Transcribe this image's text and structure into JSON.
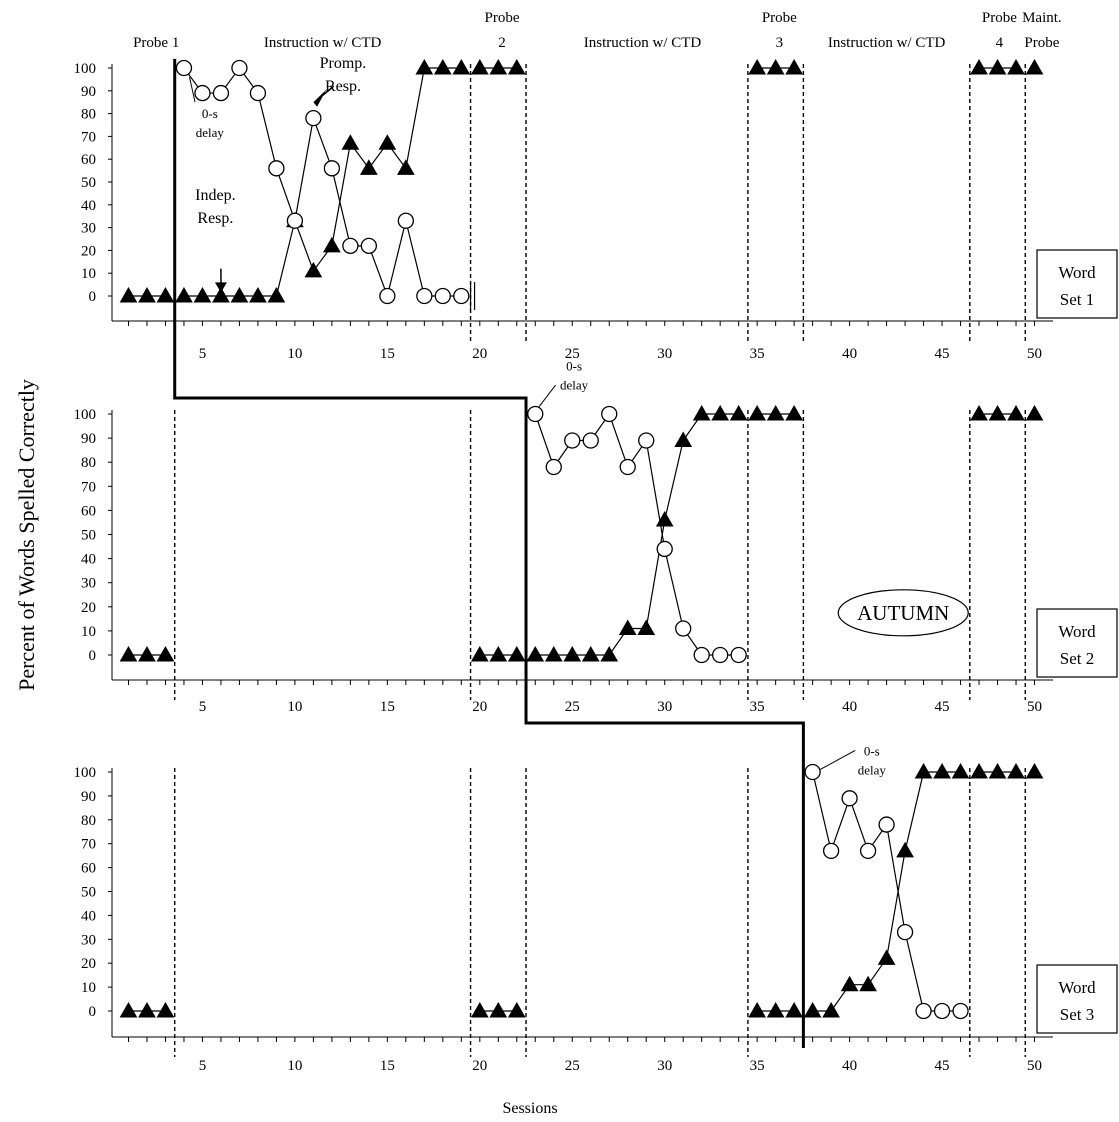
{
  "chart_data": {
    "type": "line",
    "ylabel": "Percent of Words Spelled Correctly",
    "xlabel": "Sessions",
    "xlim": [
      0,
      50
    ],
    "ylim": [
      0,
      100
    ],
    "x_ticks": [
      5,
      10,
      15,
      20,
      25,
      30,
      35,
      40,
      45,
      50
    ],
    "y_ticks": [
      0,
      10,
      20,
      30,
      40,
      50,
      60,
      70,
      80,
      90,
      100
    ],
    "phase_labels": [
      {
        "lines": [
          "Probe 1"
        ],
        "x": 2.5
      },
      {
        "lines": [
          "Instruction w/ CTD"
        ],
        "x": 11.5
      },
      {
        "lines": [
          "Probe",
          "2"
        ],
        "x": 21.2
      },
      {
        "lines": [
          "Instruction w/ CTD"
        ],
        "x": 28.8
      },
      {
        "lines": [
          "Probe",
          "3"
        ],
        "x": 36.2
      },
      {
        "lines": [
          "Instruction w/ CTD"
        ],
        "x": 42
      },
      {
        "lines": [
          "Probe",
          "4"
        ],
        "x": 48.1
      },
      {
        "lines": [
          "Maint.",
          "Probe"
        ],
        "x": 50.4
      }
    ],
    "title_name": "AUTUMN",
    "panels": [
      {
        "label": [
          "Word",
          "Set 1"
        ],
        "phase_lines": [
          20,
          23,
          35,
          38,
          47,
          50
        ],
        "break_marks": [
          19.8
        ],
        "series": [
          {
            "name": "Indep. Resp.",
            "marker": "triangle",
            "segments": [
              [
                [
                  1,
                  0
                ],
                [
                  2,
                  0
                ],
                [
                  3,
                  0
                ]
              ],
              [
                [
                  4,
                  0
                ],
                [
                  5,
                  0
                ],
                [
                  6,
                  0
                ],
                [
                  7,
                  0
                ],
                [
                  8,
                  0
                ],
                [
                  9,
                  0
                ],
                [
                  10,
                  33
                ],
                [
                  11,
                  11
                ],
                [
                  12,
                  22
                ],
                [
                  13,
                  67
                ],
                [
                  14,
                  56
                ],
                [
                  15,
                  67
                ],
                [
                  16,
                  56
                ],
                [
                  17,
                  100
                ],
                [
                  18,
                  100
                ],
                [
                  19,
                  100
                ]
              ],
              [
                [
                  20,
                  100
                ],
                [
                  21,
                  100
                ],
                [
                  22,
                  100
                ]
              ],
              [
                [
                  35,
                  100
                ],
                [
                  36,
                  100
                ],
                [
                  37,
                  100
                ]
              ],
              [
                [
                  47,
                  100
                ],
                [
                  48,
                  100
                ],
                [
                  49,
                  100
                ]
              ],
              [
                [
                  50,
                  100
                ]
              ]
            ]
          },
          {
            "name": "Promp. Resp.",
            "marker": "circle",
            "segments": [
              [
                [
                  4,
                  100
                ],
                [
                  5,
                  89
                ],
                [
                  6,
                  89
                ],
                [
                  7,
                  100
                ],
                [
                  8,
                  89
                ],
                [
                  9,
                  56
                ],
                [
                  10,
                  33
                ],
                [
                  11,
                  78
                ],
                [
                  12,
                  56
                ],
                [
                  13,
                  22
                ],
                [
                  14,
                  22
                ],
                [
                  15,
                  0
                ],
                [
                  16,
                  33
                ],
                [
                  17,
                  0
                ],
                [
                  18,
                  0
                ],
                [
                  19,
                  0
                ]
              ]
            ]
          }
        ],
        "annotations": [
          {
            "lines": [
              "0-s",
              "delay"
            ],
            "x": 5.4,
            "y": 78
          },
          {
            "lines": [
              "Indep.",
              "Resp."
            ],
            "x": 5.7,
            "y": 42
          },
          {
            "lines": [
              "Promp.",
              "Resp."
            ],
            "x": 12.6,
            "y": 100
          }
        ]
      },
      {
        "label": [
          "Word",
          "Set 2"
        ],
        "phase_lines": [
          4,
          20,
          35,
          38,
          47,
          50
        ],
        "series": [
          {
            "name": "Indep. Resp.",
            "marker": "triangle",
            "segments": [
              [
                [
                  1,
                  0
                ],
                [
                  2,
                  0
                ],
                [
                  3,
                  0
                ]
              ],
              [
                [
                  20,
                  0
                ],
                [
                  21,
                  0
                ],
                [
                  22,
                  0
                ]
              ],
              [
                [
                  23,
                  0
                ],
                [
                  24,
                  0
                ],
                [
                  25,
                  0
                ],
                [
                  26,
                  0
                ],
                [
                  27,
                  0
                ],
                [
                  28,
                  11
                ],
                [
                  29,
                  11
                ],
                [
                  30,
                  56
                ],
                [
                  31,
                  89
                ],
                [
                  32,
                  100
                ],
                [
                  33,
                  100
                ],
                [
                  34,
                  100
                ]
              ],
              [
                [
                  35,
                  100
                ],
                [
                  36,
                  100
                ],
                [
                  37,
                  100
                ]
              ],
              [
                [
                  47,
                  100
                ],
                [
                  48,
                  100
                ],
                [
                  49,
                  100
                ]
              ],
              [
                [
                  50,
                  100
                ]
              ]
            ]
          },
          {
            "name": "Promp. Resp.",
            "marker": "circle",
            "segments": [
              [
                [
                  23,
                  100
                ],
                [
                  24,
                  78
                ],
                [
                  25,
                  89
                ],
                [
                  26,
                  89
                ],
                [
                  27,
                  100
                ],
                [
                  28,
                  78
                ],
                [
                  29,
                  89
                ],
                [
                  30,
                  44
                ],
                [
                  31,
                  11
                ],
                [
                  32,
                  0
                ],
                [
                  33,
                  0
                ],
                [
                  34,
                  0
                ]
              ]
            ]
          }
        ],
        "annotations": [
          {
            "lines": [
              "0-s",
              "delay"
            ],
            "x": 25.1,
            "y": 118
          }
        ]
      },
      {
        "label": [
          "Word",
          "Set 3"
        ],
        "phase_lines": [
          4,
          20,
          23,
          35,
          47,
          50
        ],
        "series": [
          {
            "name": "Indep. Resp.",
            "marker": "triangle",
            "segments": [
              [
                [
                  1,
                  0
                ],
                [
                  2,
                  0
                ],
                [
                  3,
                  0
                ]
              ],
              [
                [
                  20,
                  0
                ],
                [
                  21,
                  0
                ],
                [
                  22,
                  0
                ]
              ],
              [
                [
                  35,
                  0
                ],
                [
                  36,
                  0
                ],
                [
                  37,
                  0
                ]
              ],
              [
                [
                  38,
                  0
                ],
                [
                  39,
                  0
                ],
                [
                  40,
                  11
                ],
                [
                  41,
                  11
                ],
                [
                  42,
                  22
                ],
                [
                  43,
                  67
                ],
                [
                  44,
                  100
                ],
                [
                  45,
                  100
                ],
                [
                  46,
                  100
                ]
              ],
              [
                [
                  47,
                  100
                ],
                [
                  48,
                  100
                ],
                [
                  49,
                  100
                ]
              ],
              [
                [
                  50,
                  100
                ]
              ]
            ]
          },
          {
            "name": "Promp. Resp.",
            "marker": "circle",
            "segments": [
              [
                [
                  38,
                  100
                ],
                [
                  39,
                  67
                ],
                [
                  40,
                  89
                ],
                [
                  41,
                  67
                ],
                [
                  42,
                  78
                ],
                [
                  43,
                  33
                ],
                [
                  44,
                  0
                ],
                [
                  45,
                  0
                ],
                [
                  46,
                  0
                ]
              ]
            ]
          }
        ],
        "annotations": [
          {
            "lines": [
              "0-s",
              "delay"
            ],
            "x": 41.2,
            "y": 107
          }
        ]
      }
    ],
    "staircase": [
      4,
      23,
      38
    ]
  }
}
